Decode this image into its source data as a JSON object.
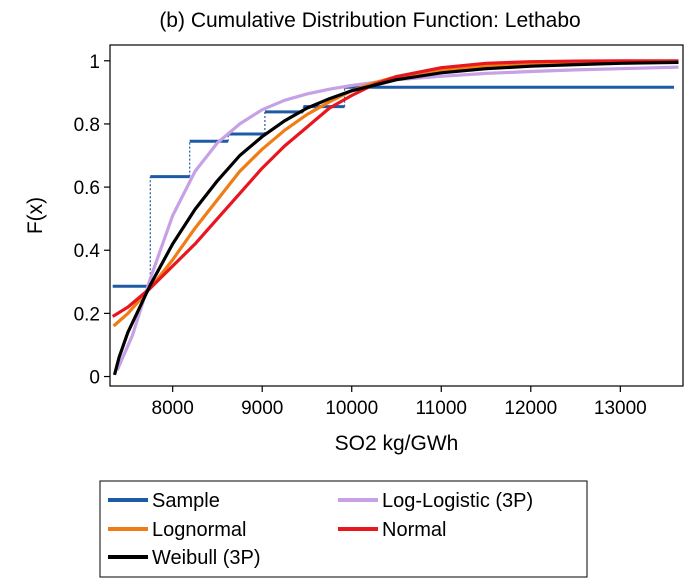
{
  "chart_data": {
    "type": "line",
    "title": "(b) Cumulative Distribution Function: Lethabo",
    "xlabel": "SO2 kg/GWh",
    "ylabel": "F(x)",
    "xlim": [
      7300,
      13700
    ],
    "ylim": [
      -0.03,
      1.05
    ],
    "x_ticks": [
      8000,
      9000,
      10000,
      11000,
      12000,
      13000
    ],
    "x_tick_labels": [
      "8000",
      "9000",
      "10000",
      "11000",
      "12000",
      "13000"
    ],
    "y_ticks": [
      0,
      0.2,
      0.4,
      0.6,
      0.8,
      1
    ],
    "y_tick_labels": [
      "0",
      "0.2",
      "0.4",
      "0.6",
      "0.8",
      "1"
    ],
    "grid": false,
    "legend_position": "bottom",
    "series": [
      {
        "name": "Sample",
        "kind": "step",
        "color": "#1f5aa6",
        "steps": [
          {
            "x_start": 7330,
            "x_end": 7750,
            "y": 0.286
          },
          {
            "x_start": 7750,
            "x_end": 8190,
            "y": 0.633
          },
          {
            "x_start": 8190,
            "x_end": 8620,
            "y": 0.745
          },
          {
            "x_start": 8620,
            "x_end": 9030,
            "y": 0.768
          },
          {
            "x_start": 9030,
            "x_end": 9460,
            "y": 0.838
          },
          {
            "x_start": 9460,
            "x_end": 9920,
            "y": 0.855
          },
          {
            "x_start": 9920,
            "x_end": 13600,
            "y": 0.916
          }
        ]
      },
      {
        "name": "Log-Logistic (3P)",
        "color": "#c8a0e6",
        "x": [
          7380,
          7550,
          7750,
          8000,
          8250,
          8500,
          8750,
          9000,
          9250,
          9500,
          9750,
          10000,
          10500,
          11000,
          11500,
          12000,
          12500,
          13000,
          13650
        ],
        "y": [
          0.02,
          0.13,
          0.31,
          0.51,
          0.65,
          0.74,
          0.8,
          0.845,
          0.875,
          0.895,
          0.91,
          0.922,
          0.94,
          0.951,
          0.96,
          0.966,
          0.971,
          0.975,
          0.98
        ]
      },
      {
        "name": "Lognormal",
        "color": "#f07d14",
        "x": [
          7340,
          7500,
          7750,
          8000,
          8250,
          8500,
          8750,
          9000,
          9250,
          9500,
          9750,
          10000,
          10250,
          10500,
          11000,
          11500,
          12000,
          12500,
          13000,
          13650
        ],
        "y": [
          0.16,
          0.2,
          0.28,
          0.37,
          0.47,
          0.56,
          0.65,
          0.72,
          0.78,
          0.83,
          0.87,
          0.905,
          0.93,
          0.95,
          0.972,
          0.983,
          0.99,
          0.994,
          0.997,
          0.999
        ]
      },
      {
        "name": "Normal",
        "color": "#e8161e",
        "x": [
          7330,
          7500,
          7750,
          8000,
          8250,
          8500,
          8750,
          9000,
          9250,
          9500,
          9750,
          10000,
          10250,
          10500,
          11000,
          11500,
          12000,
          12500,
          13000,
          13650
        ],
        "y": [
          0.19,
          0.22,
          0.28,
          0.35,
          0.42,
          0.5,
          0.58,
          0.66,
          0.73,
          0.79,
          0.85,
          0.89,
          0.925,
          0.95,
          0.978,
          0.992,
          0.997,
          0.999,
          1.0,
          1.0
        ]
      },
      {
        "name": "Weibull (3P)",
        "color": "#000000",
        "x": [
          7350,
          7400,
          7500,
          7750,
          8000,
          8250,
          8500,
          8750,
          9000,
          9250,
          9500,
          9750,
          10000,
          10500,
          11000,
          11500,
          12000,
          12500,
          13000,
          13650
        ],
        "y": [
          0.005,
          0.06,
          0.14,
          0.29,
          0.42,
          0.53,
          0.62,
          0.7,
          0.76,
          0.81,
          0.85,
          0.88,
          0.905,
          0.94,
          0.962,
          0.975,
          0.983,
          0.988,
          0.992,
          0.995
        ]
      }
    ],
    "legend_layout": [
      [
        "Sample",
        "Log-Logistic (3P)"
      ],
      [
        "Lognormal",
        "Normal"
      ],
      [
        "Weibull (3P)"
      ]
    ]
  }
}
